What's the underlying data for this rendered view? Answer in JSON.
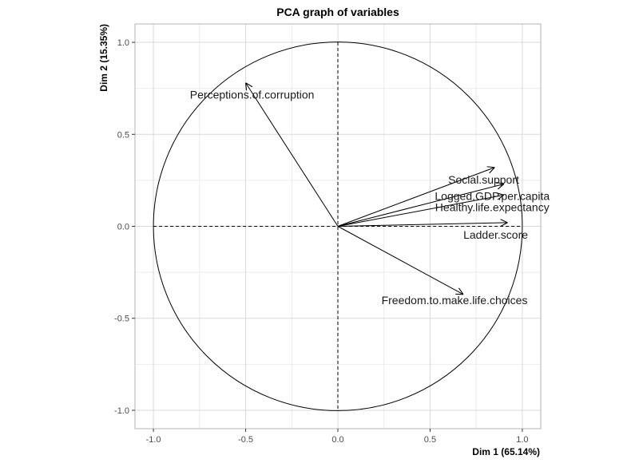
{
  "chart_data": {
    "type": "scatter",
    "title": "PCA graph of variables",
    "xlabel": "Dim 1 (65.14%)",
    "ylabel": "Dim 2 (15.35%)",
    "xlim": [
      -1.1,
      1.1
    ],
    "ylim": [
      -1.1,
      1.1
    ],
    "x_ticks": [
      -1.0,
      -0.5,
      0.0,
      0.5,
      1.0
    ],
    "y_ticks": [
      -1.0,
      -0.5,
      0.0,
      0.5,
      1.0
    ],
    "x_tick_labels": [
      "-1.0",
      "-0.5",
      "0.0",
      "0.5",
      "1.0"
    ],
    "y_tick_labels": [
      "-1.0",
      "-0.5",
      "0.0",
      "0.5",
      "1.0"
    ],
    "grid": true,
    "unit_circle": true,
    "variables": [
      {
        "name": "Perceptions.of.corruption",
        "x": -0.5,
        "y": 0.78
      },
      {
        "name": "Social.support",
        "x": 0.85,
        "y": 0.32
      },
      {
        "name": "Logged.GDP.per.capita",
        "x": 0.9,
        "y": 0.23
      },
      {
        "name": "Healthy.life.expectancy",
        "x": 0.9,
        "y": 0.17
      },
      {
        "name": "Ladder.score",
        "x": 0.92,
        "y": 0.02
      },
      {
        "name": "Freedom.to.make.life.choices",
        "x": 0.68,
        "y": -0.37
      }
    ]
  }
}
